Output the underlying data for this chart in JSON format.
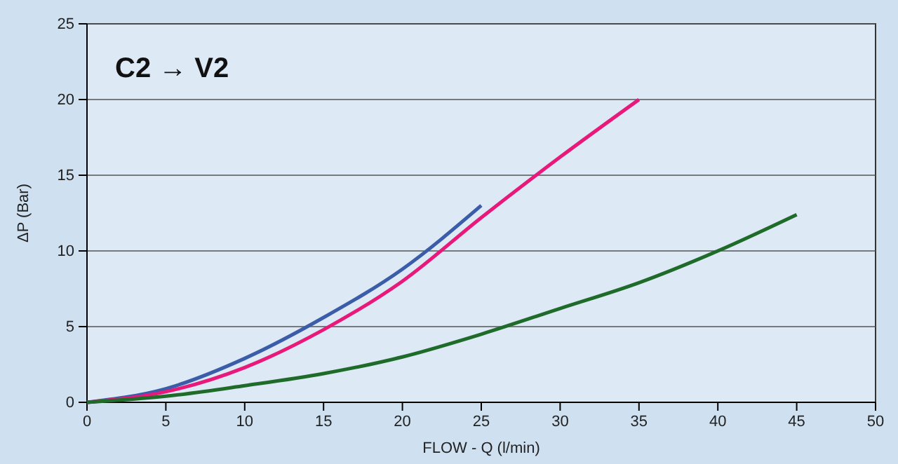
{
  "chart_data": {
    "type": "line",
    "xlabel": "FLOW - Q (l/min)",
    "ylabel": "ΔP (Bar)",
    "annotations": [
      "C2 → V2"
    ],
    "xlim": [
      0,
      50
    ],
    "ylim": [
      0,
      25
    ],
    "xticks": [
      0,
      5,
      10,
      15,
      20,
      25,
      30,
      35,
      40,
      45,
      50
    ],
    "yticks": [
      0,
      5,
      10,
      15,
      20,
      25
    ],
    "grid": "y",
    "marker": "none",
    "line_style": "solid",
    "series": [
      {
        "color": "#3b5ca8",
        "x": [
          0,
          5,
          10,
          15,
          20,
          25
        ],
        "values": [
          0,
          0.9,
          2.9,
          5.6,
          8.8,
          13
        ]
      },
      {
        "color": "#e8197a",
        "x": [
          0,
          5,
          10,
          15,
          20,
          25,
          30,
          35
        ],
        "values": [
          0,
          0.7,
          2.3,
          4.8,
          8,
          12.2,
          16.2,
          20
        ]
      },
      {
        "color": "#1f6b2a",
        "x": [
          0,
          5,
          10,
          15,
          20,
          25,
          30,
          35,
          40,
          45
        ],
        "values": [
          0,
          0.4,
          1.1,
          1.9,
          3,
          4.5,
          6.2,
          7.9,
          10,
          12.4
        ]
      }
    ]
  }
}
